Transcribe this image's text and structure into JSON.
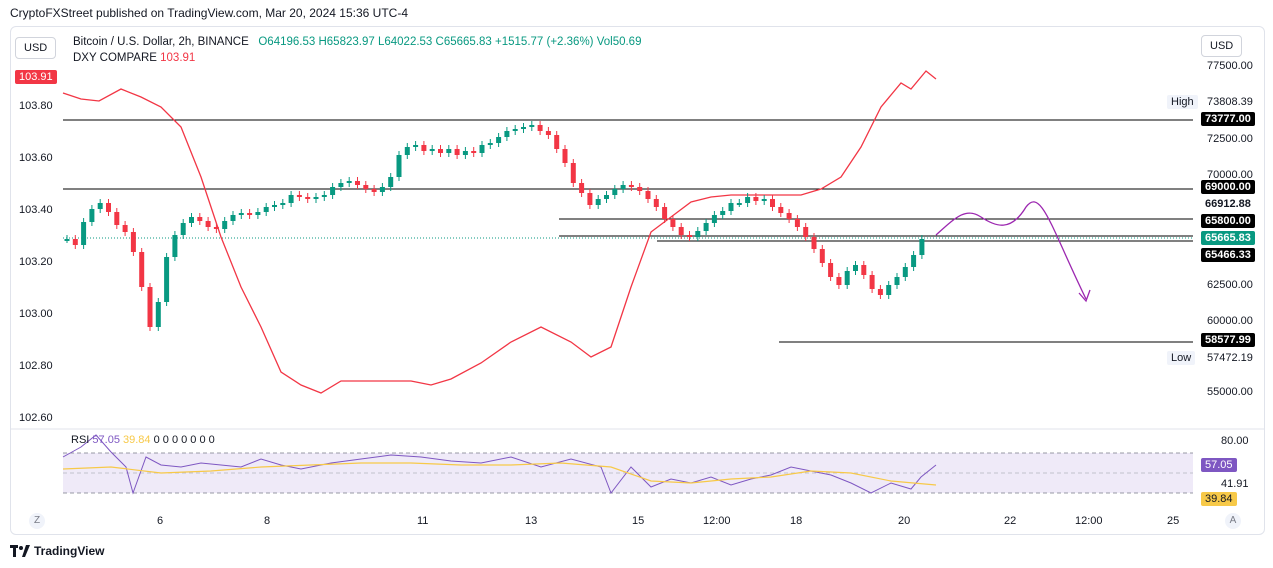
{
  "header": {
    "publisher": "CryptoFXStreet published on TradingView.com, Mar 20, 2024 15:36 UTC-4"
  },
  "usd_left": "USD",
  "usd_right": "USD",
  "legend": {
    "symbol": "Bitcoin / U.S. Dollar, 2h, BINANCE",
    "open": "O64196.53",
    "high": "H65823.97",
    "low": "L64022.53",
    "close": "C65665.83",
    "change": "+1515.77 (+2.36%)",
    "vol": "Vol50.69"
  },
  "dxy": {
    "label": "DXY COMPARE",
    "value": "103.91",
    "tag": "103.91"
  },
  "left_axis": [
    "103.80",
    "103.60",
    "103.40",
    "103.20",
    "103.00",
    "102.80",
    "102.60"
  ],
  "right_axis": {
    "p77500": "77500.00",
    "p72500": "72500.00",
    "p70000": "70000.00",
    "p62500": "62500.00",
    "p60000": "60000.00",
    "p55000": "55000.00",
    "rsi80": "80.00",
    "rsi4191": "41.91"
  },
  "tags": {
    "high_label": "High",
    "high_value": "73808.39",
    "low_label": "Low",
    "low_value": "57472.19",
    "l73777": "73777.00",
    "l69000": "69000.00",
    "l66912": "66912.88",
    "l65800": "65800.00",
    "l65665": "65665.83",
    "l65466": "65466.33",
    "l58577": "58577.99",
    "rsi5705": "57.05",
    "rsi3984": "39.84"
  },
  "x_axis": [
    "6",
    "8",
    "11",
    "13",
    "15",
    "12:00",
    "18",
    "20",
    "22",
    "12:00",
    "25"
  ],
  "rsi": {
    "label": "RSI",
    "v1": "57.05",
    "v2": "39.84",
    "zeros": "0 0 0 0 0 0 0"
  },
  "footer": {
    "brand": "TradingView"
  },
  "colors": {
    "up": "#089981",
    "down": "#f23645",
    "dxy": "#f23645",
    "rsi": "#7e57c2",
    "rsi_ma": "#f7c948",
    "projection": "#9c27b0"
  }
}
